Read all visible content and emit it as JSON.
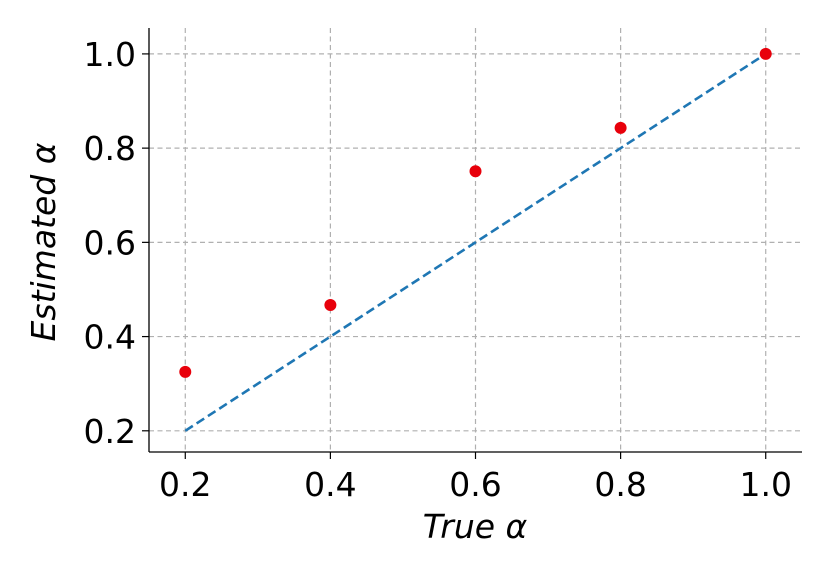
{
  "chart_data": {
    "type": "scatter",
    "xlabel": "True α",
    "ylabel": "Estimated α",
    "xlim": [
      0.15,
      1.05
    ],
    "ylim": [
      0.155,
      1.055
    ],
    "xticks": [
      "0.2",
      "0.4",
      "0.6",
      "0.8",
      "1.0"
    ],
    "yticks": [
      "0.2",
      "0.4",
      "0.6",
      "0.8",
      "1.0"
    ],
    "grid": true,
    "series": [
      {
        "type": "scatter",
        "x": [
          0.2,
          0.4,
          0.6,
          0.8,
          1.0
        ],
        "y": [
          0.325,
          0.467,
          0.751,
          0.843,
          1.0
        ],
        "color": "#e8000b"
      },
      {
        "type": "line",
        "style": "dashed",
        "x": [
          0.2,
          1.0
        ],
        "y": [
          0.2,
          1.0
        ],
        "color": "#1f77b4"
      }
    ]
  }
}
